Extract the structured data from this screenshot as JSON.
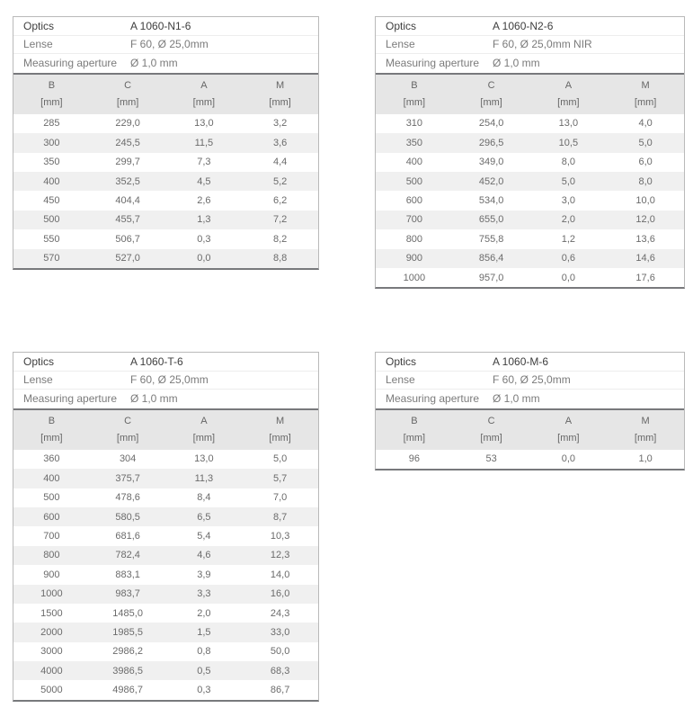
{
  "page": {
    "background": "#ffffff",
    "accent_border_color": "#78797c",
    "light_border_color": "#b9b9b9",
    "header_bg": "#e6e6e6",
    "zebra_bg": "#f0f0f0"
  },
  "columns": {
    "letters": [
      "B",
      "C",
      "A",
      "M"
    ],
    "units": [
      "[mm]",
      "[mm]",
      "[mm]",
      "[mm]"
    ]
  },
  "tables": [
    {
      "id": "n1",
      "meta": [
        {
          "label": "Optics",
          "value": "A 1060-N1-6"
        },
        {
          "label": "Lense",
          "value": "F 60, Ø 25,0mm"
        },
        {
          "label": "Measuring aperture",
          "value": "Ø 1,0 mm"
        }
      ],
      "rows": [
        [
          "285",
          "229,0",
          "13,0",
          "3,2"
        ],
        [
          "300",
          "245,5",
          "11,5",
          "3,6"
        ],
        [
          "350",
          "299,7",
          "7,3",
          "4,4"
        ],
        [
          "400",
          "352,5",
          "4,5",
          "5,2"
        ],
        [
          "450",
          "404,4",
          "2,6",
          "6,2"
        ],
        [
          "500",
          "455,7",
          "1,3",
          "7,2"
        ],
        [
          "550",
          "506,7",
          "0,3",
          "8,2"
        ],
        [
          "570",
          "527,0",
          "0,0",
          "8,8"
        ]
      ]
    },
    {
      "id": "n2",
      "meta": [
        {
          "label": "Optics",
          "value": "A 1060-N2-6"
        },
        {
          "label": "Lense",
          "value": "F 60, Ø 25,0mm NIR"
        },
        {
          "label": "Measuring aperture",
          "value": "Ø 1,0 mm"
        }
      ],
      "rows": [
        [
          "310",
          "254,0",
          "13,0",
          "4,0"
        ],
        [
          "350",
          "296,5",
          "10,5",
          "5,0"
        ],
        [
          "400",
          "349,0",
          "8,0",
          "6,0"
        ],
        [
          "500",
          "452,0",
          "5,0",
          "8,0"
        ],
        [
          "600",
          "534,0",
          "3,0",
          "10,0"
        ],
        [
          "700",
          "655,0",
          "2,0",
          "12,0"
        ],
        [
          "800",
          "755,8",
          "1,2",
          "13,6"
        ],
        [
          "900",
          "856,4",
          "0,6",
          "14,6"
        ],
        [
          "1000",
          "957,0",
          "0,0",
          "17,6"
        ]
      ]
    },
    {
      "id": "t",
      "meta": [
        {
          "label": "Optics",
          "value": "A 1060-T-6"
        },
        {
          "label": "Lense",
          "value": "F 60, Ø 25,0mm"
        },
        {
          "label": "Measuring aperture",
          "value": "Ø 1,0 mm"
        }
      ],
      "rows": [
        [
          "360",
          "304",
          "13,0",
          "5,0"
        ],
        [
          "400",
          "375,7",
          "11,3",
          "5,7"
        ],
        [
          "500",
          "478,6",
          "8,4",
          "7,0"
        ],
        [
          "600",
          "580,5",
          "6,5",
          "8,7"
        ],
        [
          "700",
          "681,6",
          "5,4",
          "10,3"
        ],
        [
          "800",
          "782,4",
          "4,6",
          "12,3"
        ],
        [
          "900",
          "883,1",
          "3,9",
          "14,0"
        ],
        [
          "1000",
          "983,7",
          "3,3",
          "16,0"
        ],
        [
          "1500",
          "1485,0",
          "2,0",
          "24,3"
        ],
        [
          "2000",
          "1985,5",
          "1,5",
          "33,0"
        ],
        [
          "3000",
          "2986,2",
          "0,8",
          "50,0"
        ],
        [
          "4000",
          "3986,5",
          "0,5",
          "68,3"
        ],
        [
          "5000",
          "4986,7",
          "0,3",
          "86,7"
        ]
      ]
    },
    {
      "id": "m",
      "meta": [
        {
          "label": "Optics",
          "value": "A 1060-M-6"
        },
        {
          "label": "Lense",
          "value": "F 60, Ø 25,0mm"
        },
        {
          "label": "Measuring aperture",
          "value": "Ø 1,0 mm"
        }
      ],
      "rows": [
        [
          "96",
          "53",
          "0,0",
          "1,0"
        ]
      ]
    }
  ]
}
